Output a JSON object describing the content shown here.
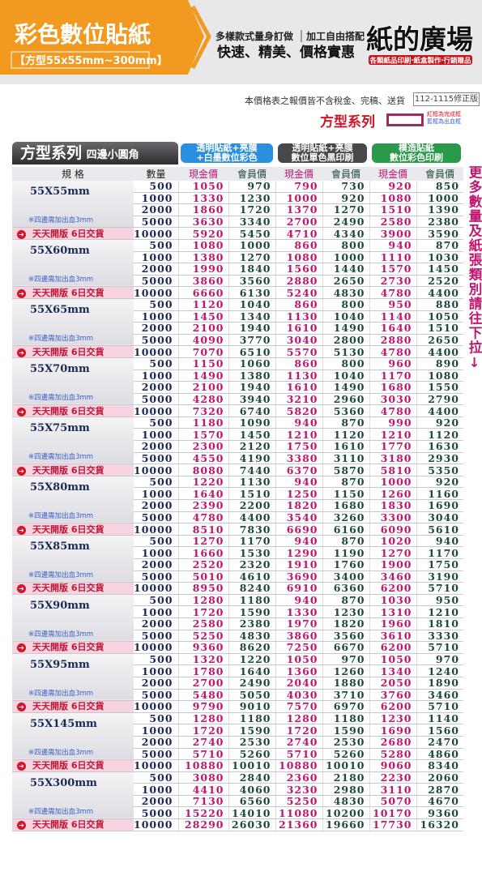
{
  "header": {
    "title": "彩色數位貼紙",
    "subtitle": "【方型55x55mm~300mm】",
    "slogan1": "多樣款式量身訂做",
    "slogan2": "加工自由搭配",
    "slogan3": "快速、精美、價格實惠",
    "brand": "紙的廣場",
    "brand_tagline": "各類紙品印刷‧紙盒製作‧行銷贈品"
  },
  "notice": "本價格表之報價皆不含稅金、完稿、送貨",
  "version": "112-1115修正版",
  "series_title": "方型系列",
  "legend": [
    "紅框為完成框",
    "藍框為出血框"
  ],
  "side_note": "更多數量及紙張類別請往下拉↓",
  "table": {
    "title": "方型系列",
    "title_note": "四邊小圓角",
    "groups": [
      [
        "透明貼紙+亮膜",
        "+白墨數位彩色"
      ],
      [
        "透明貼紙+亮膜",
        "數位單色黑印刷"
      ],
      [
        "模造貼紙",
        "數位彩色印刷"
      ]
    ],
    "columns": [
      "規 格",
      "數量",
      "現金價",
      "會員價",
      "現金價",
      "會員價",
      "現金價",
      "會員價"
    ],
    "sections": [
      {
        "size": "55X55mm",
        "note": "※四邊需加出血3mm",
        "delivery": "天天開版 6日交貨",
        "rows": [
          [
            500,
            1050,
            970,
            790,
            730,
            920,
            850
          ],
          [
            1000,
            1330,
            1230,
            1000,
            920,
            1080,
            1000
          ],
          [
            2000,
            1860,
            1720,
            1370,
            1270,
            1510,
            1390
          ],
          [
            5000,
            3630,
            3340,
            2700,
            2490,
            2580,
            2380
          ],
          [
            10000,
            5920,
            5450,
            4710,
            4340,
            3900,
            3590
          ]
        ]
      },
      {
        "size": "55X60mm",
        "note": "※四邊需加出血3mm",
        "delivery": "天天開版 6日交貨",
        "rows": [
          [
            500,
            1080,
            1000,
            860,
            800,
            940,
            870
          ],
          [
            1000,
            1380,
            1270,
            1080,
            1000,
            1110,
            1030
          ],
          [
            2000,
            1990,
            1840,
            1560,
            1440,
            1570,
            1450
          ],
          [
            5000,
            3860,
            3560,
            2880,
            2650,
            2730,
            2520
          ],
          [
            10000,
            6660,
            6130,
            5240,
            4830,
            4780,
            4400
          ]
        ]
      },
      {
        "size": "55X65mm",
        "note": "※四邊需加出血3mm",
        "delivery": "天天開版 6日交貨",
        "rows": [
          [
            500,
            1120,
            1040,
            860,
            800,
            950,
            880
          ],
          [
            1000,
            1450,
            1340,
            1130,
            1040,
            1140,
            1050
          ],
          [
            2000,
            2100,
            1940,
            1610,
            1490,
            1640,
            1510
          ],
          [
            5000,
            4090,
            3770,
            3040,
            2800,
            2880,
            2650
          ],
          [
            10000,
            7070,
            6510,
            5570,
            5130,
            4780,
            4400
          ]
        ]
      },
      {
        "size": "55X70mm",
        "note": "※四邊需加出血3mm",
        "delivery": "天天開版 6日交貨",
        "rows": [
          [
            500,
            1150,
            1060,
            860,
            800,
            960,
            890
          ],
          [
            1000,
            1490,
            1380,
            1130,
            1040,
            1170,
            1080
          ],
          [
            2000,
            2100,
            1940,
            1610,
            1490,
            1680,
            1550
          ],
          [
            5000,
            4280,
            3940,
            3210,
            2960,
            3030,
            2790
          ],
          [
            10000,
            7320,
            6740,
            5820,
            5360,
            4780,
            4400
          ]
        ]
      },
      {
        "size": "55X75mm",
        "note": "※四邊需加出血3mm",
        "delivery": "天天開版 6日交貨",
        "rows": [
          [
            500,
            1180,
            1090,
            940,
            870,
            990,
            920
          ],
          [
            1000,
            1570,
            1450,
            1210,
            1120,
            1210,
            1120
          ],
          [
            2000,
            2300,
            2120,
            1750,
            1610,
            1770,
            1630
          ],
          [
            5000,
            4550,
            4190,
            3380,
            3110,
            3180,
            2930
          ],
          [
            10000,
            8080,
            7440,
            6370,
            5870,
            5810,
            5350
          ]
        ]
      },
      {
        "size": "55X80mm",
        "note": "※四邊需加出血3mm",
        "delivery": "天天開版 6日交貨",
        "rows": [
          [
            500,
            1220,
            1130,
            940,
            870,
            1000,
            920
          ],
          [
            1000,
            1640,
            1510,
            1250,
            1150,
            1260,
            1160
          ],
          [
            2000,
            2390,
            2200,
            1820,
            1680,
            1830,
            1690
          ],
          [
            5000,
            4780,
            4400,
            3540,
            3260,
            3300,
            3040
          ],
          [
            10000,
            8510,
            7830,
            6690,
            6160,
            6090,
            5610
          ]
        ]
      },
      {
        "size": "55X85mm",
        "note": "※四邊需加出血3mm",
        "delivery": "天天開版 6日交貨",
        "rows": [
          [
            500,
            1270,
            1170,
            940,
            870,
            1020,
            940
          ],
          [
            1000,
            1660,
            1530,
            1290,
            1190,
            1270,
            1170
          ],
          [
            2000,
            2520,
            2320,
            1910,
            1760,
            1900,
            1750
          ],
          [
            5000,
            5010,
            4610,
            3690,
            3400,
            3460,
            3190
          ],
          [
            10000,
            8950,
            8240,
            6910,
            6360,
            6200,
            5710
          ]
        ]
      },
      {
        "size": "55X90mm",
        "note": "※四邊需加出血3mm",
        "delivery": "天天開版 6日交貨",
        "rows": [
          [
            500,
            1280,
            1180,
            940,
            870,
            1030,
            950
          ],
          [
            1000,
            1720,
            1590,
            1330,
            1230,
            1310,
            1210
          ],
          [
            2000,
            2580,
            2380,
            1970,
            1820,
            1960,
            1810
          ],
          [
            5000,
            5250,
            4830,
            3860,
            3560,
            3610,
            3330
          ],
          [
            10000,
            9360,
            8620,
            7250,
            6670,
            6200,
            5710
          ]
        ]
      },
      {
        "size": "55X95mm",
        "note": "※四邊需加出血3mm",
        "delivery": "天天開版 6日交貨",
        "rows": [
          [
            500,
            1320,
            1220,
            1050,
            970,
            1050,
            970
          ],
          [
            1000,
            1780,
            1640,
            1360,
            1260,
            1340,
            1240
          ],
          [
            2000,
            2700,
            2490,
            2040,
            1880,
            2050,
            1890
          ],
          [
            5000,
            5480,
            5050,
            4030,
            3710,
            3760,
            3460
          ],
          [
            10000,
            9790,
            9010,
            7570,
            6970,
            6200,
            5710
          ]
        ]
      },
      {
        "size": "55X145mm",
        "note": "※四邊需加出血3mm",
        "delivery": "天天開版 6日交貨",
        "rows": [
          [
            500,
            1280,
            1180,
            1280,
            1180,
            1230,
            1140
          ],
          [
            1000,
            1720,
            1590,
            1720,
            1590,
            1690,
            1560
          ],
          [
            2000,
            2740,
            2530,
            2740,
            2530,
            2680,
            2470
          ],
          [
            5000,
            5710,
            5260,
            5710,
            5260,
            5280,
            4860
          ],
          [
            10000,
            10880,
            10010,
            10880,
            10010,
            9060,
            8340
          ]
        ]
      },
      {
        "size": "55X300mm",
        "note": "※四邊需加出血3mm",
        "delivery": "天天開版 6日交貨",
        "rows": [
          [
            500,
            3080,
            2840,
            2360,
            2180,
            2230,
            2060
          ],
          [
            1000,
            4410,
            4060,
            3230,
            2980,
            3110,
            2870
          ],
          [
            2000,
            7130,
            6560,
            5250,
            4830,
            5070,
            4670
          ],
          [
            5000,
            15220,
            14010,
            11080,
            10200,
            10170,
            9360
          ],
          [
            10000,
            28290,
            26030,
            21360,
            19660,
            17730,
            16320
          ]
        ]
      }
    ]
  }
}
